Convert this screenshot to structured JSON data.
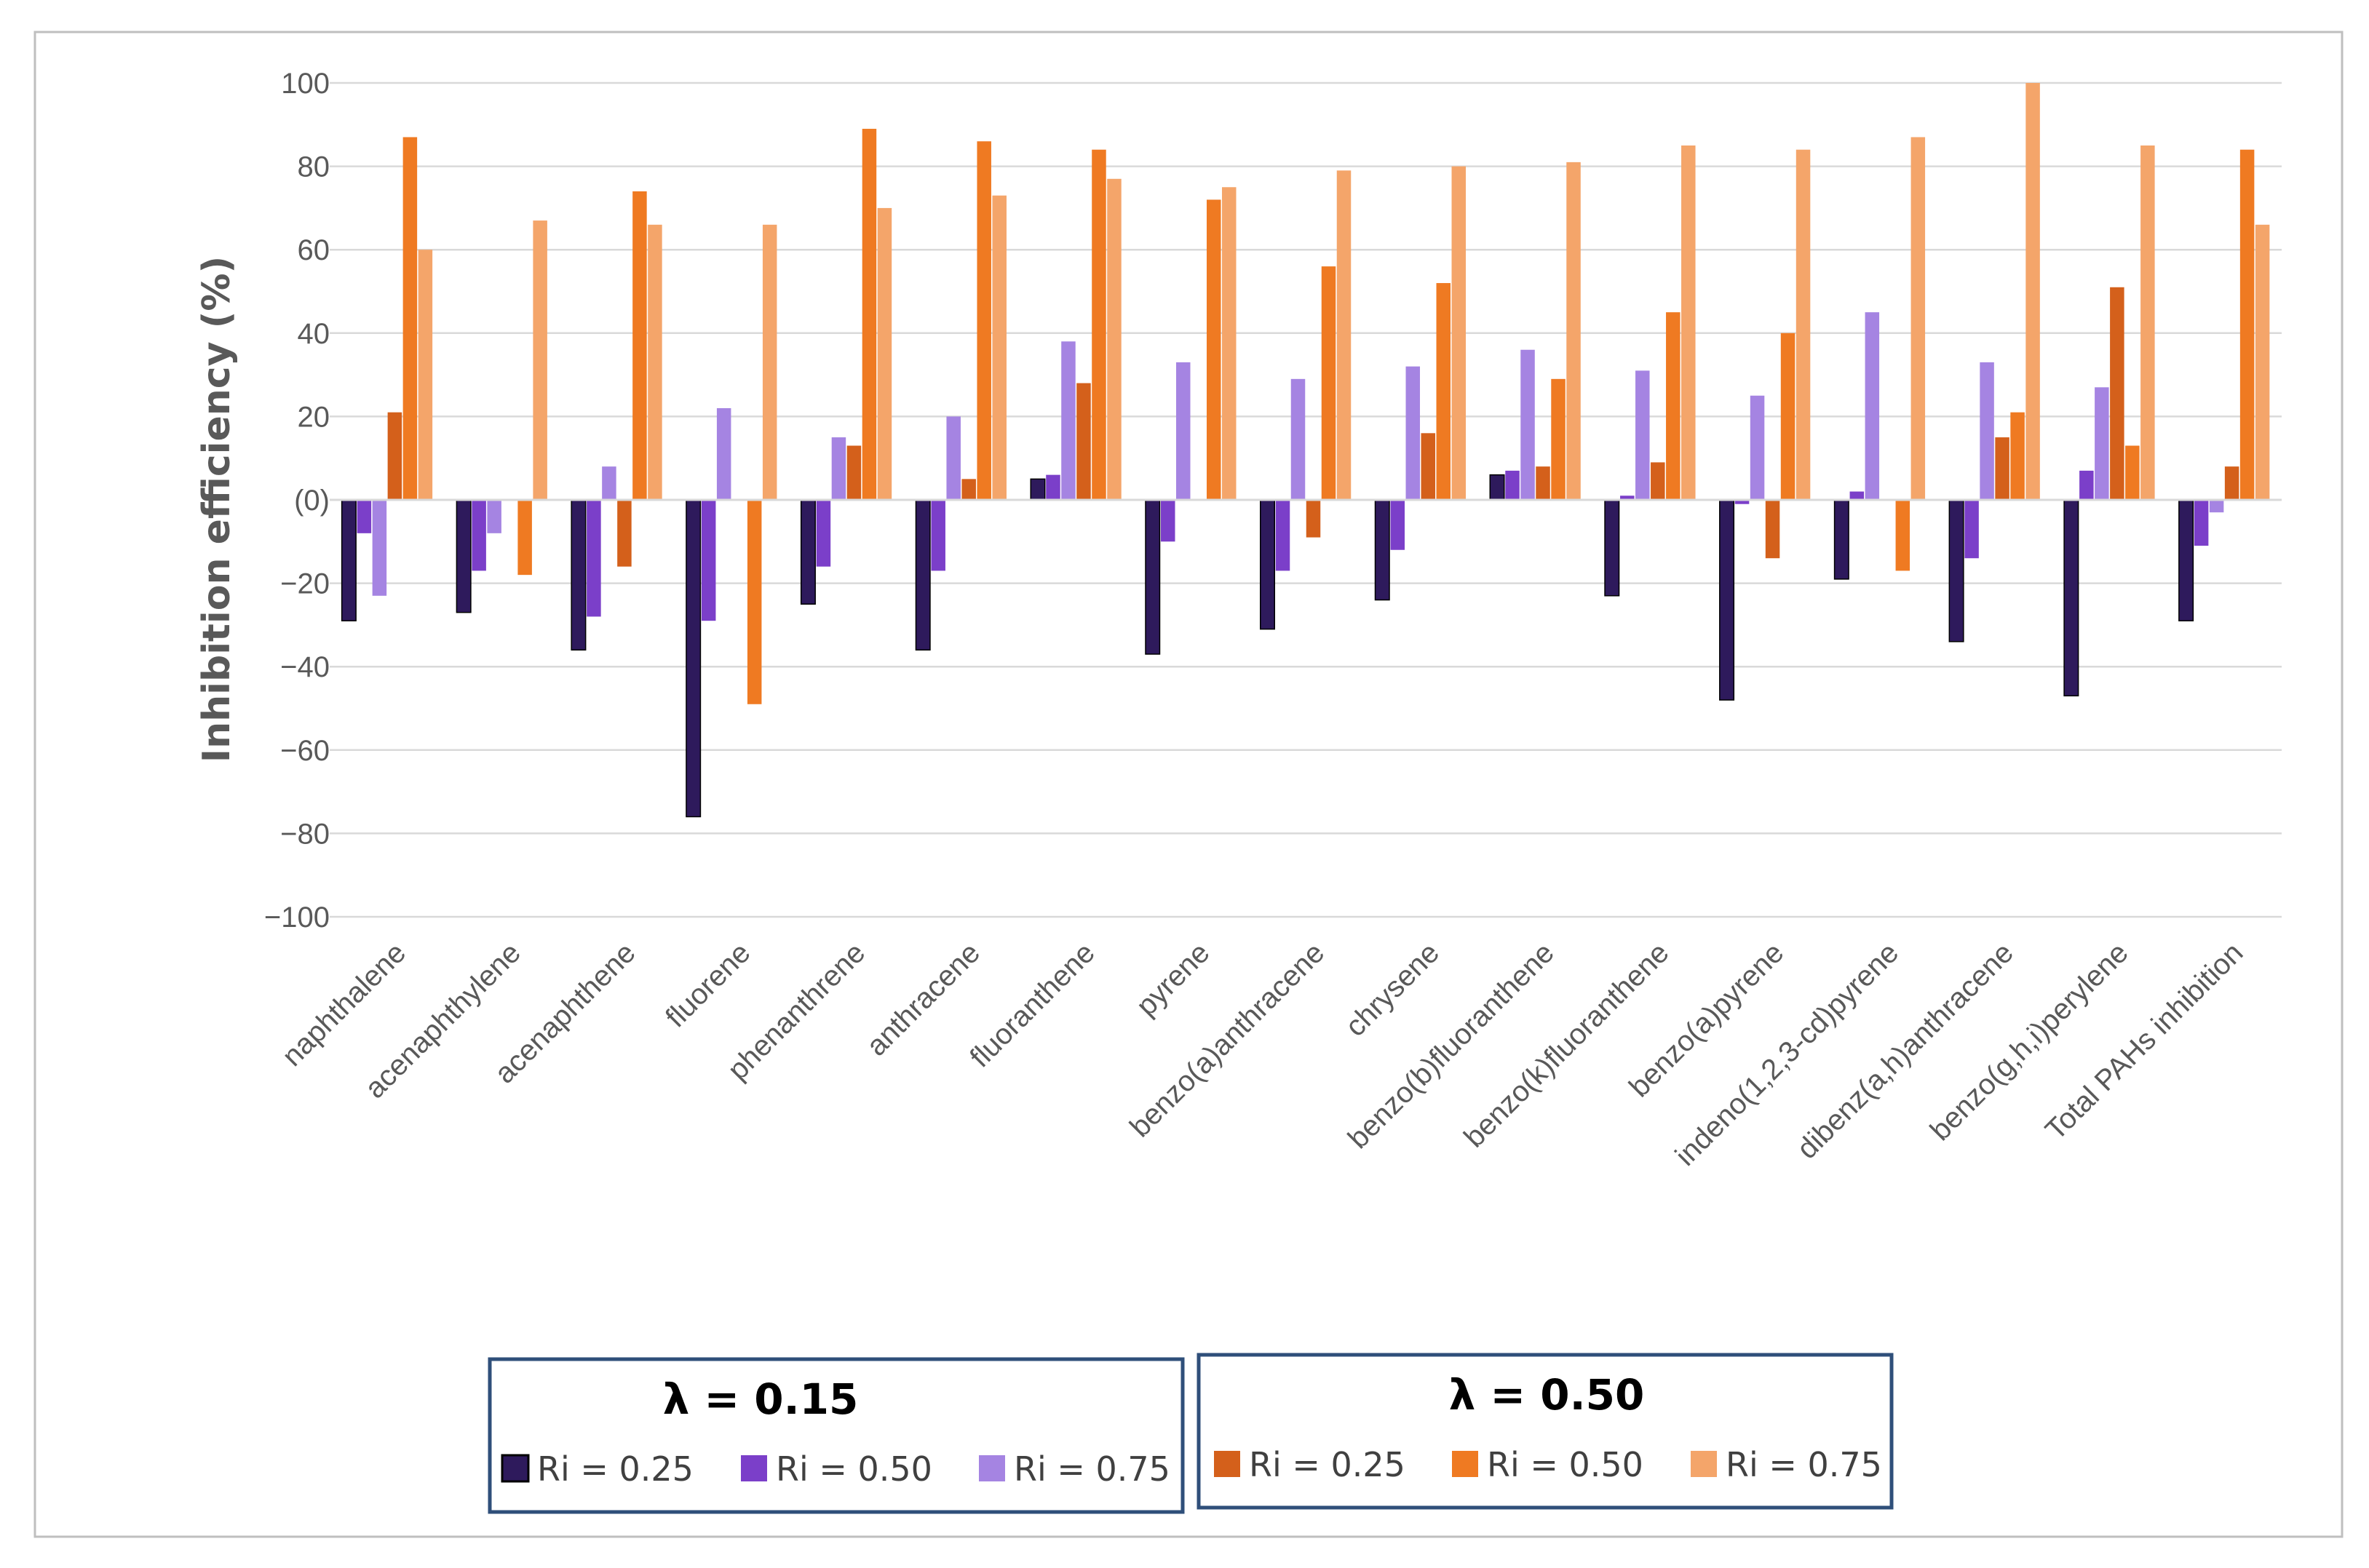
{
  "chart_data": {
    "type": "bar",
    "title": "",
    "xlabel": "",
    "ylabel": "Inhibition efficiency (%)",
    "ylim": [
      -100,
      100
    ],
    "yticks": [
      100,
      80,
      60,
      40,
      20,
      0,
      -20,
      -40,
      -60,
      -80,
      -100
    ],
    "ytick_labels": [
      "100",
      "80",
      "60",
      "40",
      "20",
      "(0)",
      "−20",
      "−40",
      "−60",
      "−80",
      "−100"
    ],
    "grid": true,
    "categories": [
      "naphthalene",
      "acenaphthylene",
      "acenaphthene",
      "fluorene",
      "phenanthrene",
      "anthracene",
      "fluoranthene",
      "pyrene",
      "benzo(a)anthracene",
      "chrysene",
      "benzo(b)fluoranthene",
      "benzo(k)fluoranthene",
      "benzo(a)pyrene",
      "indeno(1,2,3-cd)pyrene",
      "dibenz(a,h)anthracene",
      "benzo(g,h,i)perylene",
      "Total PAHs inhibition"
    ],
    "legend_groups": [
      {
        "title": "λ = 0.15",
        "series_names": [
          "Ri = 0.25",
          "Ri = 0.50",
          "Ri = 0.75"
        ]
      },
      {
        "title": "λ = 0.50",
        "series_names": [
          "Ri = 0.25",
          "Ri = 0.50",
          "Ri = 0.75"
        ]
      }
    ],
    "series": [
      {
        "name": "Ri = 0.25",
        "group": "λ = 0.15",
        "color": "#2e1a5c",
        "values": [
          -29,
          -27,
          -36,
          -76,
          -25,
          -36,
          5,
          -37,
          -31,
          -24,
          6,
          -23,
          -48,
          -19,
          -34,
          -47,
          -29
        ]
      },
      {
        "name": "Ri = 0.50",
        "group": "λ = 0.15",
        "color": "#7b3fc9",
        "values": [
          -8,
          -17,
          -28,
          -29,
          -16,
          -17,
          6,
          -10,
          -17,
          -12,
          7,
          1,
          -1,
          2,
          -14,
          7,
          -11
        ]
      },
      {
        "name": "Ri = 0.75",
        "group": "λ = 0.15",
        "color": "#a584e2",
        "values": [
          -23,
          -8,
          8,
          22,
          15,
          20,
          38,
          33,
          29,
          32,
          36,
          31,
          25,
          45,
          33,
          27,
          -3
        ]
      },
      {
        "name": "Ri = 0.25",
        "group": "λ = 0.50",
        "color": "#d4601b",
        "values": [
          21,
          0,
          -16,
          0,
          13,
          5,
          28,
          0,
          -9,
          16,
          8,
          9,
          -14,
          0,
          15,
          51,
          8
        ]
      },
      {
        "name": "Ri = 0.50",
        "group": "λ = 0.50",
        "color": "#ef7a22",
        "values": [
          87,
          -18,
          74,
          -49,
          89,
          86,
          84,
          72,
          56,
          52,
          29,
          45,
          40,
          -17,
          21,
          13,
          84
        ]
      },
      {
        "name": "Ri = 0.75",
        "group": "λ = 0.50",
        "color": "#f4a56a",
        "values": [
          60,
          67,
          66,
          66,
          70,
          73,
          77,
          75,
          79,
          80,
          81,
          85,
          84,
          87,
          100,
          85,
          66
        ]
      }
    ]
  }
}
